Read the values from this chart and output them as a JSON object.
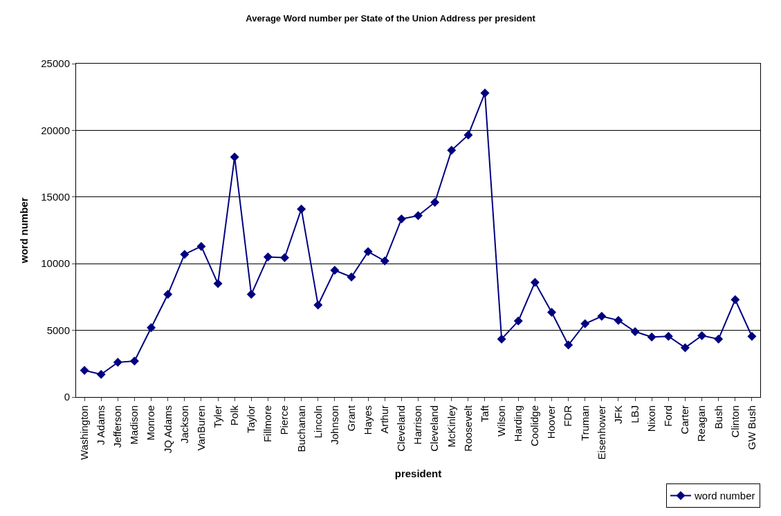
{
  "chart_data": {
    "type": "line",
    "title": "Average Word number per State of the Union Address per president",
    "xlabel": "president",
    "ylabel": "word number",
    "categories": [
      "Washington",
      "J Adams",
      "Jefferson",
      "Madison",
      "Monroe",
      "JQ Adams",
      "Jackson",
      "VanBuren",
      "Tyler",
      "Polk",
      "Taylor",
      "Fillmore",
      "Pierce",
      "Buchanan",
      "Lincoln",
      "Johnson",
      "Grant",
      "Hayes",
      "Arthur",
      "Cleveland",
      "Harrison",
      "Cleveland",
      "McKinley",
      "Roosevelt",
      "Taft",
      "Wilson",
      "Harding",
      "Coolidge",
      "Hoover",
      "FDR",
      "Truman",
      "Eisenhower",
      "JFK",
      "LBJ",
      "Nixon",
      "Ford",
      "Carter",
      "Reagan",
      "Bush",
      "Clinton",
      "GW Bush"
    ],
    "series": [
      {
        "name": "word number",
        "color": "#000080",
        "values": [
          2000,
          1700,
          2600,
          2700,
          5200,
          7700,
          10700,
          11300,
          8500,
          18000,
          7700,
          10500,
          10450,
          14100,
          6900,
          9500,
          9000,
          10900,
          10200,
          13350,
          13600,
          14600,
          18500,
          19650,
          22800,
          4350,
          5700,
          8600,
          6350,
          3900,
          5500,
          6050,
          5750,
          4900,
          4500,
          4550,
          3700,
          4600,
          4350,
          7300,
          4550
        ]
      }
    ],
    "ylim": [
      0,
      25000
    ],
    "yticks": [
      0,
      5000,
      10000,
      15000,
      20000,
      25000
    ],
    "grid": "y",
    "legend": "bottom right",
    "marker": "diamond",
    "line_style": "solid"
  }
}
